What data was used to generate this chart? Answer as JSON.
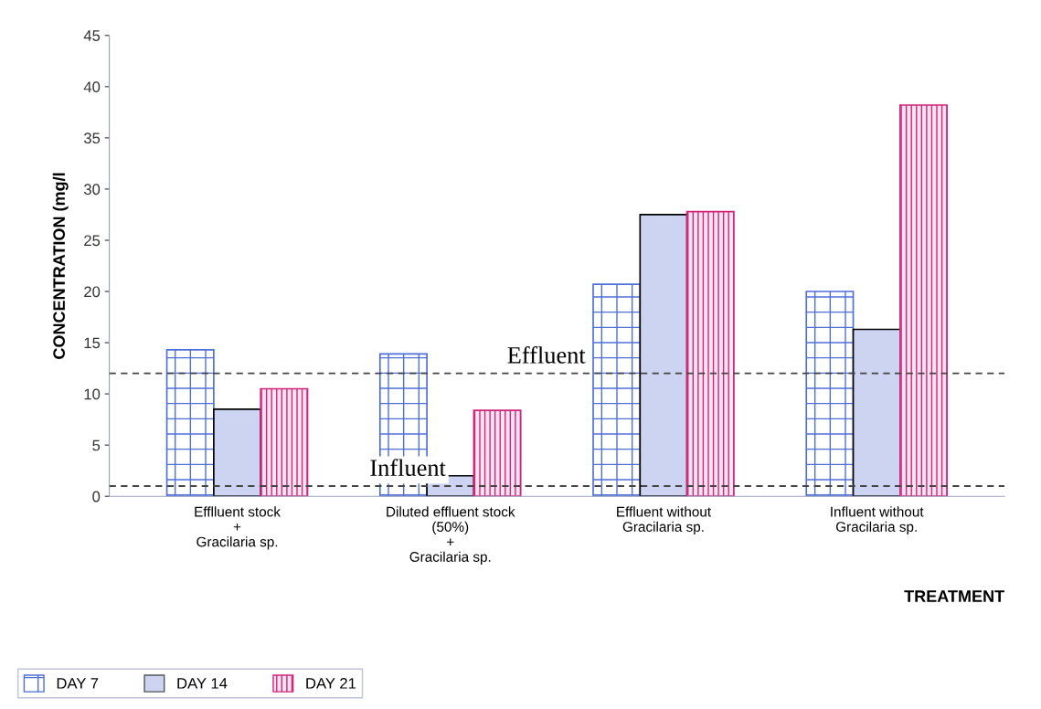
{
  "chart_data": {
    "type": "bar",
    "xlabel": "TREATMENT",
    "ylabel": "CONCENTRATION (mg/l",
    "categories": [
      "Efflluent stock\n+\nGracilaria sp.",
      "Diluted effluent stock\n(50%)\n+\nGracilaria sp.",
      "Effluent without\nGracilaria sp.",
      "Influent without\nGracilaria sp."
    ],
    "series": [
      {
        "name": "DAY 7",
        "color": "#4f6fd8",
        "values": [
          14.3,
          13.9,
          20.7,
          20.0
        ]
      },
      {
        "name": "DAY 14",
        "color": "#ccd4f2",
        "values": [
          8.5,
          2.0,
          27.5,
          16.3
        ]
      },
      {
        "name": "DAY 21",
        "color": "#d0267a",
        "values": [
          10.5,
          8.4,
          27.8,
          38.2
        ]
      }
    ],
    "ylim": [
      0,
      45
    ],
    "yticks": [
      0,
      5,
      10,
      15,
      20,
      25,
      30,
      35,
      40,
      45
    ],
    "ref_lines": [
      {
        "axis": "y",
        "value": 12.0,
        "label": "Effluent",
        "color": "#444444",
        "line_style": "dashed"
      },
      {
        "axis": "y",
        "value": 1.0,
        "label": "Influent",
        "color": "#444444",
        "line_style": "dashed"
      }
    ],
    "grid": false,
    "legend": "bottom left"
  }
}
